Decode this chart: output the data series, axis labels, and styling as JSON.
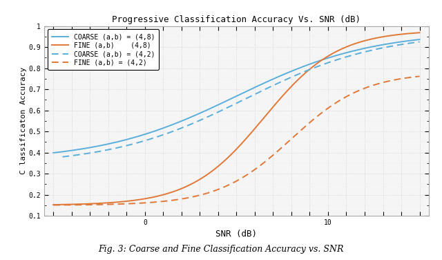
{
  "title": "Progressive Classification Accuracy Vs. SNR (dB)",
  "xlabel": "SNR (dB)",
  "ylabel": "C lassificaton Accuracy",
  "caption": "Fig. 3: Coarse and Fine Classification Accuracy vs. SNR",
  "xlim": [
    -5.5,
    15.5
  ],
  "ylim": [
    0.1,
    1.0
  ],
  "ytick_vals": [
    0.1,
    0.2,
    0.3,
    0.4,
    0.5,
    0.6,
    0.7,
    0.8,
    0.9,
    1.0
  ],
  "ytick_labels": [
    "0.1",
    "0.2",
    "0.3",
    "0.4",
    "0.5",
    "0.6",
    "0.7",
    "0.8",
    "0.9",
    "1"
  ],
  "xtick_vals": [
    -5,
    -4,
    -3,
    -2,
    -1,
    0,
    1,
    2,
    3,
    4,
    5,
    6,
    7,
    8,
    9,
    10,
    11,
    12,
    13,
    14,
    15
  ],
  "xtick_labeled": {
    "0": "0",
    "10": "10"
  },
  "legend": [
    {
      "label": "COARSE (a,b) = (4,8)",
      "color": "#5aaedb",
      "linestyle": "solid"
    },
    {
      "label": "FINE (a,b)    (4,8)",
      "color": "#e07838",
      "linestyle": "solid"
    },
    {
      "label": "COARSE (a,b) = (4,2)",
      "color": "#5aaedb",
      "linestyle": "dashed"
    },
    {
      "label": "FINE (a,b) = (4,2)",
      "color": "#e07838",
      "linestyle": "dashed"
    }
  ],
  "blue_color": "#5aaedb",
  "orange_color": "#e07838",
  "bg_color": "#f5f5f5",
  "grid_color": "#cccccc",
  "fig_bg": "#ffffff"
}
